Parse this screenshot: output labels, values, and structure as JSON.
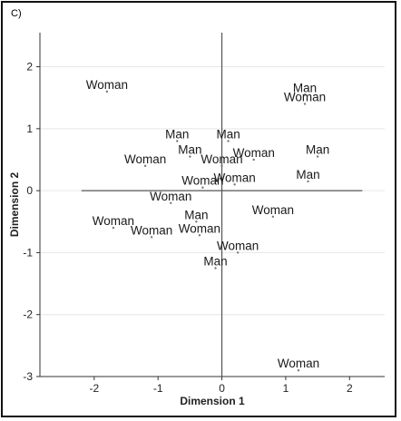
{
  "panel_label": "C)",
  "chart_data": {
    "type": "scatter",
    "title": "",
    "xlabel": "Dimension 1",
    "ylabel": "Dimension 2",
    "xlim": [
      -2.85,
      2.55
    ],
    "ylim": [
      -3.0,
      2.55
    ],
    "xticks": [
      -2,
      -1,
      0,
      1,
      2
    ],
    "yticks": [
      -3,
      -2,
      -1,
      0,
      1,
      2
    ],
    "grid": "horizontal",
    "reference_lines": {
      "x0": [
        -2.2,
        2.2
      ],
      "y0": [
        -3.0,
        2.55
      ]
    },
    "points": [
      {
        "label": "Woman",
        "x": -1.8,
        "y": 1.6
      },
      {
        "label": "Man",
        "x": 1.3,
        "y": 1.55
      },
      {
        "label": "Woman",
        "x": 1.3,
        "y": 1.4
      },
      {
        "label": "Man",
        "x": -0.7,
        "y": 0.8
      },
      {
        "label": "Man",
        "x": 0.1,
        "y": 0.8
      },
      {
        "label": "Man",
        "x": -0.5,
        "y": 0.55
      },
      {
        "label": "Woman",
        "x": 0.5,
        "y": 0.5
      },
      {
        "label": "Man",
        "x": 1.5,
        "y": 0.55
      },
      {
        "label": "Woman",
        "x": -1.2,
        "y": 0.4
      },
      {
        "label": "Woman",
        "x": 0.0,
        "y": 0.4
      },
      {
        "label": "Man",
        "x": 1.35,
        "y": 0.15
      },
      {
        "label": "Woman",
        "x": -0.3,
        "y": 0.05
      },
      {
        "label": "Woman",
        "x": 0.2,
        "y": 0.1
      },
      {
        "label": "Woman",
        "x": -0.8,
        "y": -0.2
      },
      {
        "label": "Woman",
        "x": 0.8,
        "y": -0.42
      },
      {
        "label": "Man",
        "x": -0.4,
        "y": -0.5
      },
      {
        "label": "Woman",
        "x": -1.7,
        "y": -0.6
      },
      {
        "label": "Woman",
        "x": -1.1,
        "y": -0.75
      },
      {
        "label": "Woman",
        "x": -0.35,
        "y": -0.72
      },
      {
        "label": "Woman",
        "x": 0.25,
        "y": -1.0
      },
      {
        "label": "Man",
        "x": -0.1,
        "y": -1.25
      },
      {
        "label": "Woman",
        "x": 1.2,
        "y": -2.9
      }
    ]
  }
}
